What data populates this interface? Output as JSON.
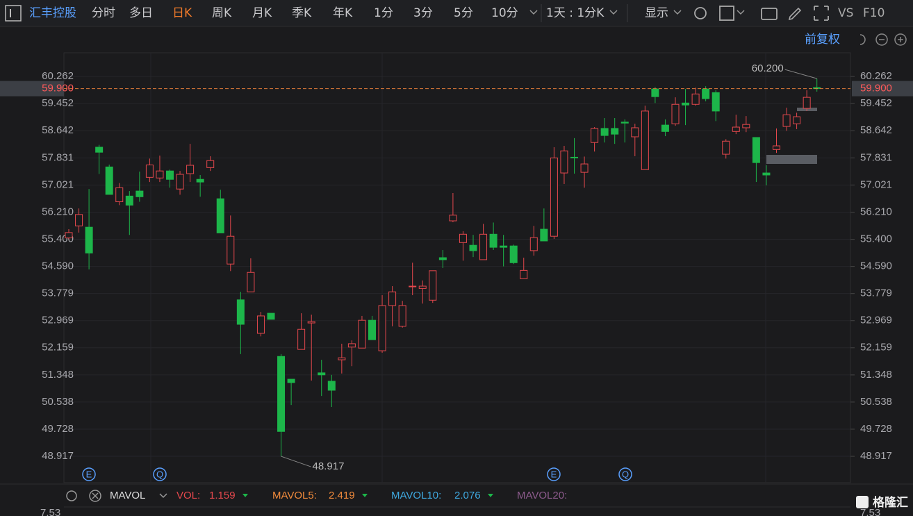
{
  "toolbar": {
    "symbol": "汇丰控股",
    "tabs": [
      "分时",
      "多日",
      "日K",
      "周K",
      "月K",
      "季K",
      "年K",
      "1分",
      "3分",
      "5分",
      "10分"
    ],
    "active_tab_index": 2,
    "period_select": "1天 : 1分K",
    "display": "显示",
    "vs": "VS",
    "f10": "F10"
  },
  "adjust": "前复权",
  "events": [
    "E",
    "Q",
    "E",
    "Q"
  ],
  "chart_data": {
    "type": "candlestick",
    "open": [
      55.44,
      55.8,
      55.76,
      58.15,
      57.56,
      56.52,
      56.69,
      56.84,
      57.25,
      57.23,
      57.44,
      56.9,
      57.36,
      57.19,
      57.54,
      56.61,
      54.66,
      53.59,
      53.83,
      52.59,
      53.19,
      51.9,
      51.22,
      52.11,
      52.9,
      51.41,
      51.16,
      51.8,
      52.18,
      52.15,
      52.98,
      52.07,
      53.42,
      52.8,
      53.98,
      53.93,
      53.58,
      54.85,
      55.95,
      55.3,
      55.22,
      54.79,
      55.55,
      55.2,
      55.2,
      54.22,
      55.06,
      55.7,
      55.49,
      57.38,
      57.85,
      57.4,
      58.29,
      58.71,
      58.71,
      58.9,
      58.46,
      57.48,
      59.89,
      58.81,
      58.85,
      59.47,
      59.43,
      59.89,
      59.78,
      57.94,
      58.62,
      58.73,
      58.44,
      57.38,
      58.08,
      58.77,
      58.85,
      59.31,
      59.93
    ],
    "high": [
      55.7,
      56.32,
      56.9,
      58.22,
      57.63,
      57.08,
      56.84,
      57.42,
      57.81,
      57.9,
      57.48,
      57.44,
      58.25,
      57.32,
      57.88,
      56.88,
      56.11,
      53.83,
      54.83,
      53.23,
      53.19,
      51.97,
      51.22,
      53.19,
      53.15,
      51.8,
      51.35,
      52.28,
      52.38,
      53.11,
      53.11,
      53.73,
      54.0,
      53.56,
      54.7,
      54.17,
      54.46,
      55.08,
      56.78,
      55.64,
      55.53,
      55.86,
      55.9,
      55.53,
      55.24,
      54.85,
      55.8,
      56.32,
      58.15,
      58.19,
      58.42,
      57.87,
      58.75,
      59.02,
      59.02,
      58.98,
      58.85,
      59.39,
      59.95,
      58.98,
      59.64,
      59.89,
      59.93,
      59.97,
      59.85,
      58.39,
      59.12,
      59.08,
      58.44,
      57.61,
      58.71,
      59.33,
      59.18,
      59.85,
      60.2
    ],
    "low": [
      55.4,
      55.6,
      54.5,
      57.35,
      56.74,
      56.42,
      55.53,
      56.52,
      57.11,
      57.11,
      56.94,
      56.73,
      57.11,
      56.67,
      57.44,
      55.59,
      54.45,
      51.97,
      53.83,
      52.5,
      53.01,
      48.917,
      50.45,
      52.11,
      51.18,
      50.72,
      50.39,
      51.39,
      51.61,
      52.15,
      52.4,
      52.01,
      52.8,
      52.76,
      53.73,
      53.48,
      53.5,
      54.54,
      55.91,
      54.76,
      54.87,
      54.79,
      55.08,
      54.59,
      54.66,
      54.22,
      54.91,
      55.35,
      55.41,
      57.05,
      57.36,
      56.94,
      58.02,
      58.29,
      58.25,
      58.29,
      57.88,
      57.48,
      59.47,
      58.48,
      58.79,
      58.81,
      59.39,
      59.52,
      58.93,
      57.81,
      58.54,
      58.6,
      57.11,
      57.01,
      57.98,
      58.64,
      58.69,
      59.23,
      59.81
    ],
    "close": [
      55.6,
      56.14,
      54.99,
      58.0,
      56.74,
      56.94,
      56.42,
      56.67,
      57.62,
      57.44,
      57.19,
      57.34,
      57.61,
      57.11,
      57.75,
      55.59,
      55.49,
      52.86,
      54.41,
      53.11,
      53.01,
      49.66,
      51.12,
      52.71,
      52.94,
      51.35,
      50.89,
      51.86,
      52.28,
      52.98,
      52.4,
      53.42,
      53.83,
      53.42,
      54.0,
      54.0,
      54.46,
      54.79,
      56.12,
      55.55,
      55.06,
      55.55,
      55.16,
      55.16,
      54.7,
      54.47,
      55.45,
      55.35,
      57.83,
      58.04,
      57.83,
      57.65,
      58.71,
      58.5,
      58.54,
      58.87,
      58.73,
      59.23,
      59.66,
      58.62,
      59.43,
      59.41,
      59.74,
      59.6,
      59.23,
      58.33,
      58.75,
      58.83,
      57.69,
      57.32,
      58.19,
      59.12,
      59.06,
      59.64,
      59.9
    ],
    "ylim": [
      48.13,
      60.97
    ],
    "yticks": [
      60.262,
      59.452,
      58.642,
      57.831,
      57.021,
      56.21,
      55.4,
      54.59,
      53.779,
      52.969,
      52.159,
      51.348,
      50.538,
      49.728,
      48.917
    ],
    "ytick_labels": [
      "60.262",
      "59.452",
      "58.642",
      "57.831",
      "57.021",
      "56.210",
      "55.400",
      "54.590",
      "53.779",
      "52.969",
      "52.159",
      "51.348",
      "50.538",
      "49.728",
      "48.917"
    ],
    "grid": true,
    "up_color": "#e5484d",
    "down_color": "#1db64a",
    "last_price": {
      "value": 59.9,
      "label": "59.900"
    },
    "high_mark": {
      "value": 60.2,
      "label": "60.200"
    },
    "low_mark": {
      "value": 48.917,
      "label": "48.917"
    }
  },
  "indicator": {
    "name": "MAVOL",
    "items": [
      {
        "name": "VOL:",
        "value": 1.159,
        "color": "#e5484d"
      },
      {
        "name": "MAVOL5:",
        "value": 2.419,
        "color": "#f08a3c"
      },
      {
        "name": "MAVOL10:",
        "value": 2.076,
        "color": "#3fa9e0"
      },
      {
        "name": "MAVOL20:",
        "color": "#8d5b8d"
      }
    ],
    "axis_top": 7.53
  },
  "watermark": "格隆汇"
}
